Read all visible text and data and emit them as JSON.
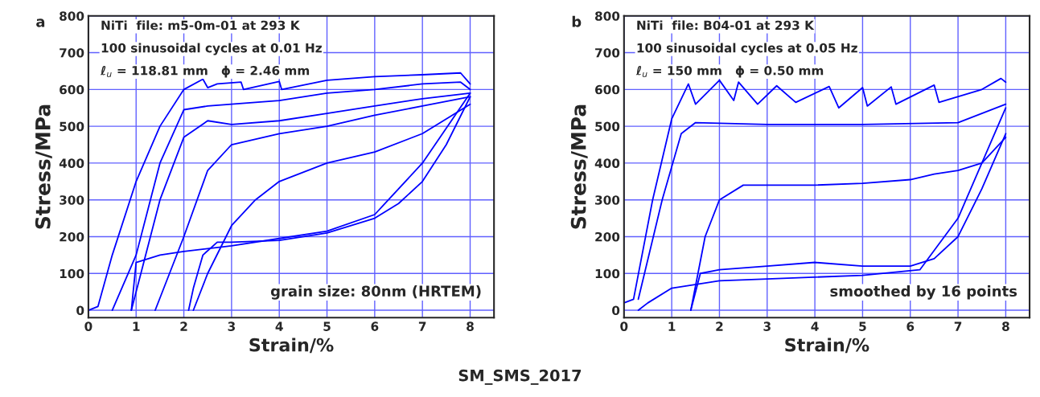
{
  "chart_data": [
    {
      "type": "line",
      "title": "a",
      "xlabel": "Strain/%",
      "ylabel": "Stress/MPa",
      "xlim": [
        0,
        8.5
      ],
      "ylim": [
        -20,
        800
      ],
      "xticks": [
        0,
        1,
        2,
        3,
        4,
        5,
        6,
        7,
        8
      ],
      "yticks": [
        0,
        100,
        200,
        300,
        400,
        500,
        600,
        700,
        800
      ],
      "grid": true,
      "annotations": [
        "NiTi  file: m5-0m-01 at 293 K",
        "100 sinusoidal cycles at 0.01 Hz",
        "ℓ$_{u}$ = 118.81 mm   ϕ = 2.46 mm",
        "grain size: 80nm (HRTEM)",
        "SM_SMS_2017"
      ],
      "series": [
        {
          "color": "#0000ff",
          "x": [
            0,
            0.2,
            0.5,
            1,
            1.5,
            2,
            2.4,
            2.5,
            2.7,
            3.2,
            3.25,
            4,
            4.05,
            5,
            6,
            7,
            7.8,
            8
          ],
          "values": [
            0,
            10,
            150,
            350,
            500,
            600,
            628,
            605,
            615,
            620,
            600,
            622,
            600,
            625,
            635,
            640,
            645,
            615
          ]
        },
        {
          "color": "#0000ff",
          "x": [
            0.5,
            1,
            1.5,
            2,
            2.5,
            3,
            4,
            5,
            6,
            7,
            7.8,
            8
          ],
          "values": [
            0,
            150,
            400,
            545,
            555,
            560,
            570,
            590,
            600,
            615,
            620,
            600
          ]
        },
        {
          "color": "#0000ff",
          "x": [
            0.9,
            1.5,
            2,
            2.5,
            3,
            4,
            5,
            6,
            7,
            8
          ],
          "values": [
            0,
            300,
            470,
            515,
            505,
            515,
            535,
            555,
            575,
            590
          ]
        },
        {
          "color": "#0000ff",
          "x": [
            1.4,
            2,
            2.5,
            3,
            4,
            5,
            6,
            7,
            8
          ],
          "values": [
            0,
            200,
            380,
            450,
            480,
            500,
            530,
            555,
            580
          ]
        },
        {
          "color": "#0000ff",
          "x": [
            2.2,
            2.5,
            3,
            3.5,
            4,
            5,
            6,
            7,
            7.5,
            8
          ],
          "values": [
            0,
            100,
            230,
            300,
            350,
            400,
            430,
            480,
            520,
            560
          ]
        },
        {
          "color": "#0000ff",
          "x": [
            8,
            7.5,
            7,
            6.5,
            6,
            5,
            4,
            3,
            2.7,
            2.4,
            2.2,
            2.1
          ],
          "values": [
            580,
            450,
            350,
            290,
            250,
            210,
            190,
            185,
            185,
            150,
            60,
            0
          ]
        },
        {
          "color": "#0000ff",
          "x": [
            8,
            7,
            6,
            5,
            4,
            3,
            2,
            1.5,
            1,
            0.9
          ],
          "values": [
            590,
            400,
            260,
            215,
            195,
            175,
            160,
            150,
            130,
            0
          ]
        }
      ]
    },
    {
      "type": "line",
      "title": "b",
      "xlabel": "Strain/%",
      "ylabel": "Stress/MPa",
      "xlim": [
        0,
        8.5
      ],
      "ylim": [
        -20,
        800
      ],
      "xticks": [
        0,
        1,
        2,
        3,
        4,
        5,
        6,
        7,
        8
      ],
      "yticks": [
        0,
        100,
        200,
        300,
        400,
        500,
        600,
        700,
        800
      ],
      "grid": true,
      "annotations": [
        "NiTi  file: B04-01 at 293 K",
        "100 sinusoidal cycles at 0.05 Hz",
        "ℓ$_{u}$ = 150 mm   ϕ = 0.50 mm",
        "smoothed by 16 points"
      ],
      "series": [
        {
          "color": "#0000ff",
          "x": [
            0,
            0.2,
            0.6,
            1,
            1.35,
            1.5,
            2,
            2.3,
            2.4,
            2.8,
            3.2,
            3.6,
            4.3,
            4.5,
            5,
            5.1,
            5.6,
            5.7,
            6.5,
            6.6,
            7.5,
            7.9,
            8
          ],
          "values": [
            20,
            30,
            300,
            520,
            615,
            560,
            625,
            570,
            620,
            560,
            610,
            565,
            608,
            550,
            605,
            555,
            607,
            560,
            612,
            565,
            600,
            630,
            620
          ]
        },
        {
          "color": "#0000ff",
          "x": [
            0.3,
            0.8,
            1.2,
            1.5,
            3,
            5,
            7,
            8
          ],
          "values": [
            30,
            300,
            480,
            510,
            505,
            505,
            510,
            560
          ]
        },
        {
          "color": "#0000ff",
          "x": [
            1.4,
            1.7,
            2,
            2.5,
            3,
            4,
            5,
            6,
            6.5,
            7,
            7.5,
            8
          ],
          "values": [
            0,
            200,
            300,
            340,
            340,
            340,
            345,
            355,
            370,
            380,
            400,
            470
          ]
        },
        {
          "color": "#0000ff",
          "x": [
            8,
            7.5,
            7,
            6.5,
            6,
            5,
            4,
            3,
            2,
            1.6,
            1.4
          ],
          "values": [
            480,
            330,
            200,
            140,
            120,
            120,
            130,
            120,
            110,
            100,
            0
          ]
        },
        {
          "color": "#0000ff",
          "x": [
            8,
            7,
            6.2,
            5,
            3,
            2,
            1,
            0.5,
            0.3
          ],
          "values": [
            550,
            250,
            110,
            95,
            85,
            80,
            60,
            20,
            0
          ]
        }
      ]
    }
  ]
}
